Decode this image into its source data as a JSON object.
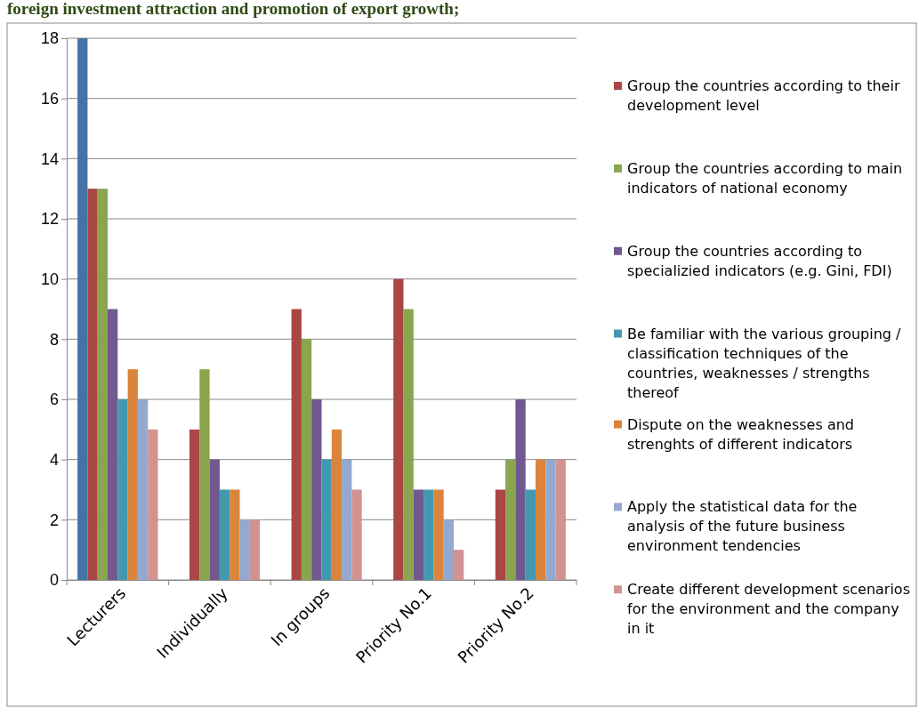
{
  "chart_data": {
    "type": "bar",
    "title": "foreign investment attraction and promotion of export growth;",
    "categories": [
      "Lecturers",
      "Individually",
      "In groups",
      "Priority No.1",
      "Priority No.2"
    ],
    "series": [
      {
        "color": "#4572a7",
        "values": [
          18,
          null,
          null,
          null,
          null
        ]
      },
      {
        "name": "Group the countries according to their development level",
        "color": "#aa4643",
        "values": [
          13,
          5,
          9,
          10,
          3
        ]
      },
      {
        "name": "Group the countries according to main indicators of national economy",
        "color": "#89a54e",
        "values": [
          13,
          7,
          8,
          9,
          4
        ]
      },
      {
        "name": "Group the countries according to specializied indicators (e.g. Gini, FDI)",
        "color": "#71588f",
        "values": [
          9,
          4,
          6,
          3,
          6
        ]
      },
      {
        "name": "Be familiar with the various grouping / classification techniques of the countries, weaknesses / strengths thereof",
        "color": "#4198af",
        "values": [
          6,
          3,
          4,
          3,
          3
        ]
      },
      {
        "name": "Dispute on  the weaknesses and strenghts of different indicators",
        "color": "#db843d",
        "values": [
          7,
          3,
          5,
          3,
          4
        ]
      },
      {
        "name": "Apply the statistical data for the analysis of the future  business environment tendencies",
        "color": "#93a9cf",
        "values": [
          6,
          2,
          4,
          2,
          4
        ]
      },
      {
        "name": "Create different development scenarios for the environment and the company in it",
        "color": "#d19392",
        "values": [
          5,
          2,
          3,
          1,
          4
        ]
      }
    ],
    "ylim": [
      0,
      18
    ],
    "yticks": [
      0,
      2,
      4,
      6,
      8,
      10,
      12,
      14,
      16,
      18
    ],
    "grid": "y",
    "legend": "right"
  }
}
